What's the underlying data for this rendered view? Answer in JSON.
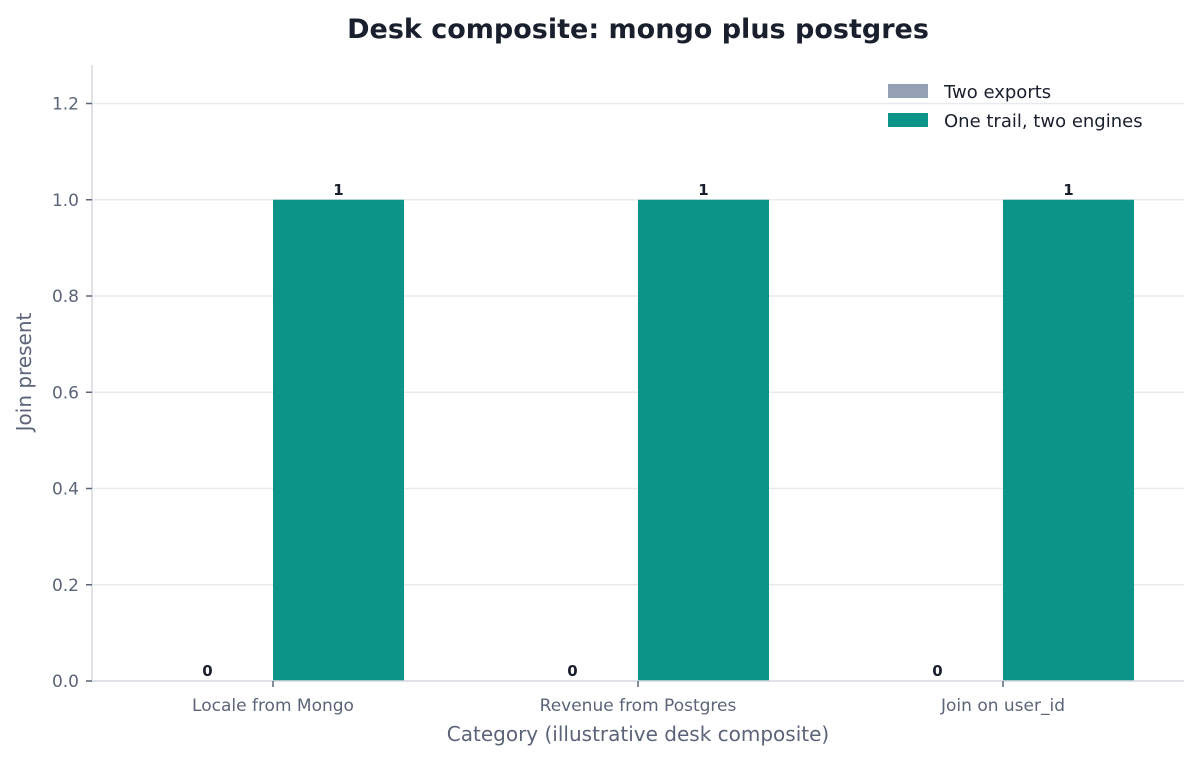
{
  "chart_data": {
    "type": "bar",
    "title": "Desk composite: mongo plus postgres",
    "xlabel": "Category (illustrative desk composite)",
    "ylabel": "Join present",
    "categories": [
      "Locale from Mongo",
      "Revenue from Postgres",
      "Join on user_id"
    ],
    "series": [
      {
        "name": "Two exports",
        "values": [
          0,
          0,
          0
        ],
        "color": "#94a0b4"
      },
      {
        "name": "One trail, two engines",
        "values": [
          1,
          1,
          1
        ],
        "color": "#0d9488"
      }
    ],
    "ylim": [
      0,
      1.28
    ],
    "yticks": [
      "0.0",
      "0.2",
      "0.4",
      "0.6",
      "0.8",
      "1.0",
      "1.2"
    ],
    "grid": true,
    "legend_position": "top-right"
  }
}
